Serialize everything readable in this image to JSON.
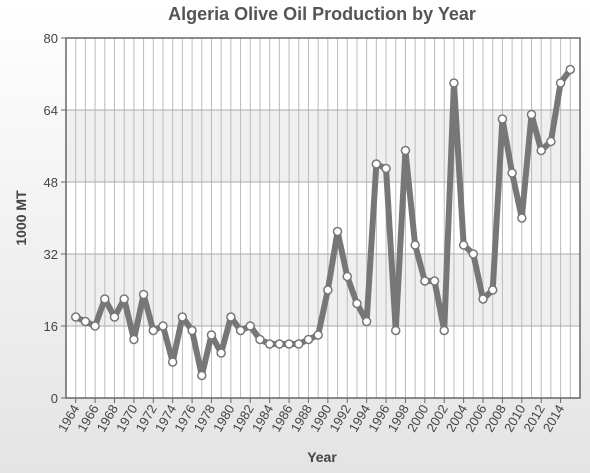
{
  "chart_data": {
    "type": "line",
    "title": "Algeria Olive Oil Production by Year",
    "x_label": "Year",
    "y_label": "1000 MT",
    "x": [
      1964,
      1965,
      1966,
      1967,
      1968,
      1969,
      1970,
      1971,
      1972,
      1973,
      1974,
      1975,
      1976,
      1977,
      1978,
      1979,
      1980,
      1981,
      1982,
      1983,
      1984,
      1985,
      1986,
      1987,
      1988,
      1989,
      1990,
      1991,
      1992,
      1993,
      1994,
      1995,
      1996,
      1997,
      1998,
      1999,
      2000,
      2001,
      2002,
      2003,
      2004,
      2005,
      2006,
      2007,
      2008,
      2009,
      2010,
      2011,
      2012,
      2013,
      2014,
      2015
    ],
    "series": [
      {
        "name": "1000 MT",
        "color": "#777777",
        "values": [
          18,
          17,
          16,
          22,
          18,
          22,
          13,
          23,
          15,
          16,
          8,
          18,
          15,
          5,
          14,
          10,
          18,
          15,
          16,
          13,
          12,
          12,
          12,
          12,
          13,
          14,
          24,
          37,
          27,
          21,
          17,
          52,
          51,
          15,
          55,
          34,
          26,
          26,
          15,
          70,
          34,
          32,
          22,
          24,
          62,
          50,
          40,
          63,
          55,
          57,
          70,
          73
        ]
      }
    ],
    "xlim": [
      1963,
      2016
    ],
    "xticks": [
      1964,
      1966,
      1968,
      1970,
      1972,
      1974,
      1976,
      1978,
      1980,
      1982,
      1984,
      1986,
      1988,
      1990,
      1992,
      1994,
      1996,
      1998,
      2000,
      2002,
      2004,
      2006,
      2008,
      2010,
      2012,
      2014
    ],
    "ylim": [
      0,
      80
    ],
    "yticks": [
      0,
      16,
      32,
      48,
      64,
      80
    ],
    "grid": true
  }
}
